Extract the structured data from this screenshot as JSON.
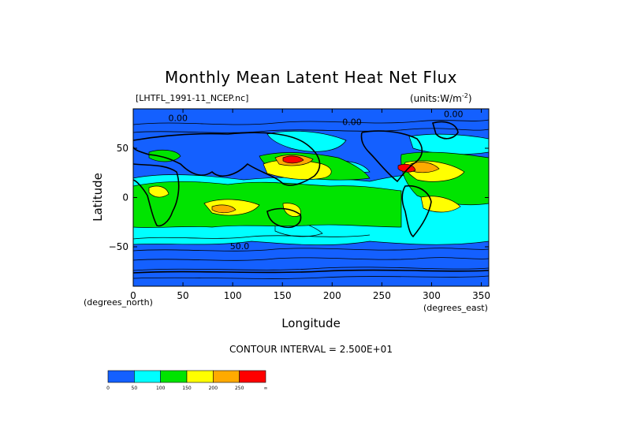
{
  "chart_data": {
    "type": "heatmap",
    "title": "Monthly Mean Latent Heat Net Flux",
    "file_label": "[LHTFL_1991-11_NCEP.nc]",
    "units_label": "(units:W/m^-2)",
    "xlabel": "Longitude",
    "ylabel": "Latitude",
    "x_unit_label": "(degrees_east)",
    "y_unit_label": "(degrees_north)",
    "xlim": [
      0,
      357.5
    ],
    "ylim": [
      -90,
      90
    ],
    "x_ticks": [
      0,
      50,
      100,
      150,
      200,
      250,
      300,
      350
    ],
    "y_ticks": [
      -50,
      0,
      50
    ],
    "x_tick_labels": [
      "0",
      "50",
      "100",
      "150",
      "200",
      "250",
      "300",
      "350"
    ],
    "y_tick_labels": [
      "−50",
      "0",
      "50"
    ],
    "contour_interval_text": "CONTOUR INTERVAL = 2.500E+01",
    "contour_labels": [
      {
        "text": "0.00",
        "lon": 45,
        "lat": 81
      },
      {
        "text": "0.00",
        "lon": 220,
        "lat": 77
      },
      {
        "text": "0.00",
        "lon": 322,
        "lat": 85
      },
      {
        "text": "50.0",
        "lon": 107,
        "lat": -49
      }
    ],
    "colorbar": {
      "levels": [
        0,
        50,
        100,
        150,
        200,
        250,
        300
      ],
      "tick_labels": [
        "0",
        "50",
        "100",
        "150",
        "200",
        "250",
        "∞"
      ],
      "colors": [
        "#1460ff",
        "#00ffff",
        "#00e400",
        "#ffff00",
        "#ffaa00",
        "#ff0000"
      ]
    },
    "grid": false,
    "legend": "bottom-left colorbar"
  }
}
